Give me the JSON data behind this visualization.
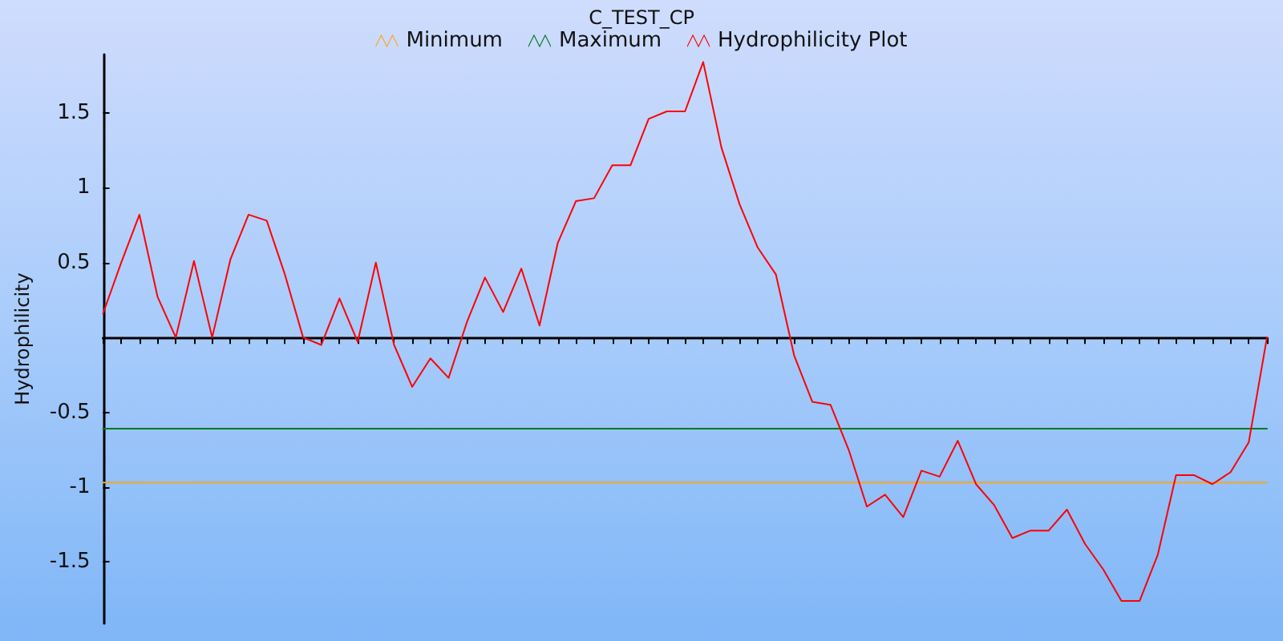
{
  "chart_data": {
    "type": "line",
    "title": "C_TEST_CP",
    "ylabel": "Hydrophilicity",
    "categories": [
      null,
      null,
      null,
      null,
      null,
      null,
      null,
      null,
      null,
      null,
      null,
      null,
      null,
      null,
      null,
      null,
      null,
      null,
      null,
      null,
      null,
      null,
      null,
      null,
      null,
      null,
      null,
      null,
      null,
      null,
      null,
      null,
      null,
      null,
      null,
      null,
      null,
      null,
      null,
      null,
      null,
      null,
      null,
      null,
      null,
      null,
      null,
      null,
      null,
      null,
      null,
      null,
      null,
      null,
      null,
      null,
      null,
      null,
      null,
      null,
      null,
      null,
      null,
      null,
      null
    ],
    "series": [
      {
        "name": "Minimum",
        "color": "#f5a623",
        "values": [
          -0.97,
          -0.97,
          -0.97,
          -0.97,
          -0.97,
          -0.97,
          -0.97,
          -0.97,
          -0.97,
          -0.97,
          -0.97,
          -0.97,
          -0.97,
          -0.97,
          -0.97,
          -0.97,
          -0.97,
          -0.97,
          -0.97,
          -0.97,
          -0.97,
          -0.97,
          -0.97,
          -0.97,
          -0.97,
          -0.97,
          -0.97,
          -0.97,
          -0.97,
          -0.97,
          -0.97,
          -0.97,
          -0.97,
          -0.97,
          -0.97,
          -0.97,
          -0.97,
          -0.97,
          -0.97,
          -0.97,
          -0.97,
          -0.97,
          -0.97,
          -0.97,
          -0.97,
          -0.97,
          -0.97,
          -0.97,
          -0.97,
          -0.97,
          -0.97,
          -0.97,
          -0.97,
          -0.97,
          -0.97,
          -0.97,
          -0.97,
          -0.97,
          -0.97,
          -0.97,
          -0.97,
          -0.97,
          -0.97,
          -0.97,
          -0.97
        ]
      },
      {
        "name": "Maximum",
        "color": "#007a1e",
        "values": [
          -0.61,
          -0.61,
          -0.61,
          -0.61,
          -0.61,
          -0.61,
          -0.61,
          -0.61,
          -0.61,
          -0.61,
          -0.61,
          -0.61,
          -0.61,
          -0.61,
          -0.61,
          -0.61,
          -0.61,
          -0.61,
          -0.61,
          -0.61,
          -0.61,
          -0.61,
          -0.61,
          -0.61,
          -0.61,
          -0.61,
          -0.61,
          -0.61,
          -0.61,
          -0.61,
          -0.61,
          -0.61,
          -0.61,
          -0.61,
          -0.61,
          -0.61,
          -0.61,
          -0.61,
          -0.61,
          -0.61,
          -0.61,
          -0.61,
          -0.61,
          -0.61,
          -0.61,
          -0.61,
          -0.61,
          -0.61,
          -0.61,
          -0.61,
          -0.61,
          -0.61,
          -0.61,
          -0.61,
          -0.61,
          -0.61,
          -0.61,
          -0.61,
          -0.61,
          -0.61,
          -0.61,
          -0.61,
          -0.61,
          -0.61,
          -0.61
        ]
      },
      {
        "name": "Hydrophilicity Plot",
        "color": "#ff0000",
        "values": [
          0.16,
          0.5,
          0.82,
          0.27,
          0,
          0.51,
          0,
          0.52,
          0.82,
          0.78,
          0.42,
          0,
          -0.05,
          0.26,
          -0.03,
          0.5,
          -0.05,
          -0.33,
          -0.14,
          -0.27,
          0.1,
          0.4,
          0.17,
          0.46,
          0.08,
          0.63,
          0.91,
          0.93,
          1.15,
          1.15,
          1.46,
          1.51,
          1.51,
          1.84,
          1.27,
          0.89,
          0.6,
          0.42,
          -0.12,
          -0.43,
          -0.45,
          -0.75,
          -1.13,
          -1.05,
          -1.2,
          -0.89,
          -0.93,
          -0.69,
          -0.98,
          -1.12,
          -1.34,
          -1.29,
          -1.29,
          -1.15,
          -1.38,
          -1.55,
          -1.76,
          -1.76,
          -1.45,
          -0.92,
          -0.92,
          -0.98,
          -0.9,
          -0.7,
          0
        ]
      }
    ],
    "ylim": [
      -1.91,
      1.89
    ],
    "yticks": [
      -1.5,
      -1,
      -0.5,
      0.5,
      1,
      1.5
    ],
    "legend": "top",
    "tick_labels": "y",
    "marker": "none",
    "line_style": "solid",
    "grid": false
  }
}
